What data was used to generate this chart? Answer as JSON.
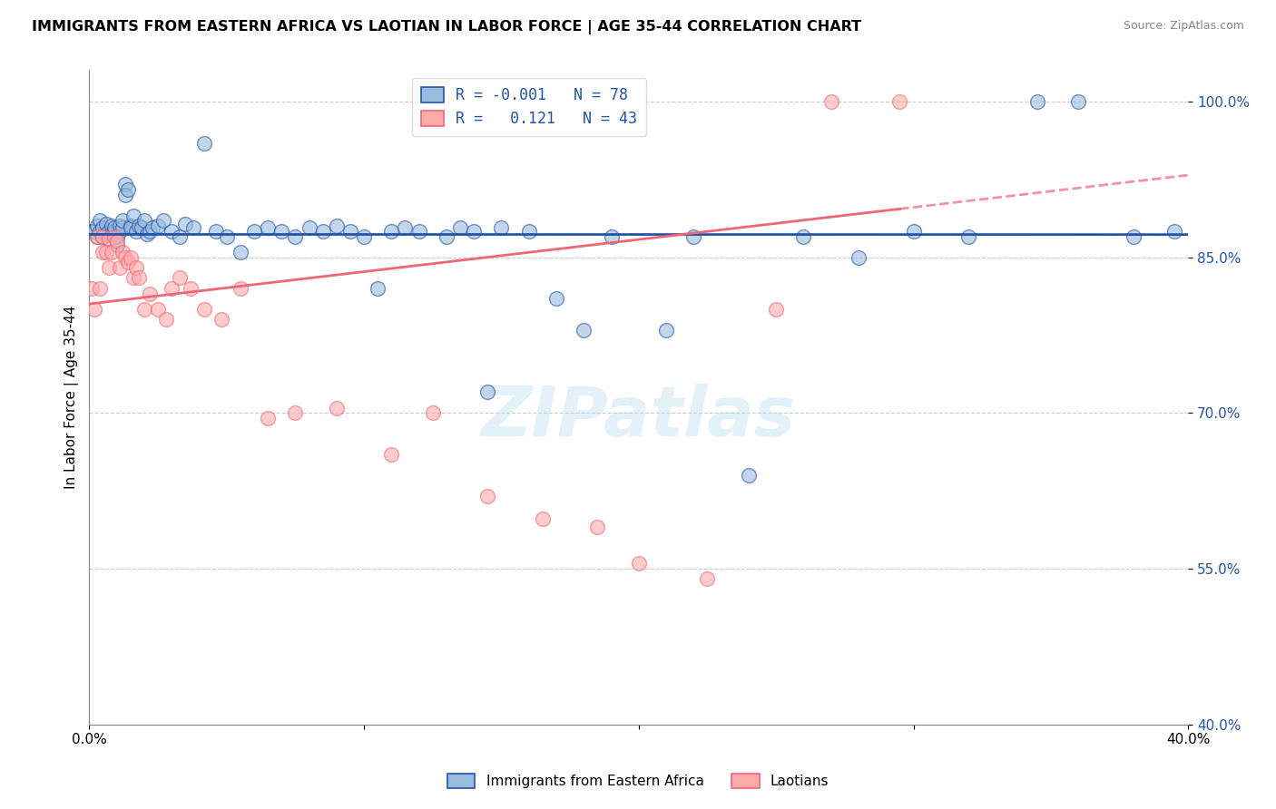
{
  "title": "IMMIGRANTS FROM EASTERN AFRICA VS LAOTIAN IN LABOR FORCE | AGE 35-44 CORRELATION CHART",
  "source": "Source: ZipAtlas.com",
  "ylabel": "In Labor Force | Age 35-44",
  "xlim": [
    0.0,
    0.4
  ],
  "ylim": [
    0.4,
    1.03
  ],
  "ytick_positions": [
    0.4,
    0.55,
    0.7,
    0.85,
    1.0
  ],
  "ytick_labels": [
    "40.0%",
    "55.0%",
    "70.0%",
    "85.0%",
    "100.0%"
  ],
  "xtick_positions": [
    0.0,
    0.1,
    0.2,
    0.3,
    0.4
  ],
  "xtick_labels": [
    "0.0%",
    "",
    "",
    "",
    "40.0%"
  ],
  "legend_r_blue": "-0.001",
  "legend_n_blue": "78",
  "legend_r_pink": "0.121",
  "legend_n_pink": "43",
  "blue_color": "#99BBDD",
  "pink_color": "#FFAAAA",
  "trendline_blue_color": "#2255AA",
  "trendline_pink_color": "#EE6677",
  "watermark": "ZIPatlas",
  "blue_x": [
    0.001,
    0.002,
    0.003,
    0.003,
    0.004,
    0.004,
    0.005,
    0.005,
    0.006,
    0.006,
    0.007,
    0.007,
    0.008,
    0.008,
    0.009,
    0.009,
    0.01,
    0.01,
    0.011,
    0.011,
    0.012,
    0.012,
    0.013,
    0.013,
    0.014,
    0.015,
    0.015,
    0.016,
    0.017,
    0.018,
    0.019,
    0.02,
    0.021,
    0.022,
    0.023,
    0.025,
    0.027,
    0.03,
    0.033,
    0.035,
    0.038,
    0.042,
    0.046,
    0.05,
    0.055,
    0.06,
    0.065,
    0.07,
    0.075,
    0.08,
    0.085,
    0.09,
    0.095,
    0.1,
    0.105,
    0.11,
    0.115,
    0.12,
    0.13,
    0.135,
    0.14,
    0.145,
    0.15,
    0.16,
    0.17,
    0.18,
    0.19,
    0.21,
    0.22,
    0.24,
    0.26,
    0.28,
    0.3,
    0.32,
    0.345,
    0.36,
    0.38,
    0.395
  ],
  "blue_y": [
    0.875,
    0.875,
    0.88,
    0.87,
    0.885,
    0.875,
    0.87,
    0.878,
    0.872,
    0.882,
    0.875,
    0.868,
    0.88,
    0.872,
    0.875,
    0.878,
    0.87,
    0.862,
    0.875,
    0.88,
    0.878,
    0.885,
    0.92,
    0.91,
    0.915,
    0.88,
    0.878,
    0.89,
    0.875,
    0.88,
    0.878,
    0.885,
    0.872,
    0.875,
    0.878,
    0.88,
    0.885,
    0.875,
    0.87,
    0.882,
    0.878,
    0.96,
    0.875,
    0.87,
    0.855,
    0.875,
    0.878,
    0.875,
    0.87,
    0.878,
    0.875,
    0.88,
    0.875,
    0.87,
    0.82,
    0.875,
    0.878,
    0.875,
    0.87,
    0.878,
    0.875,
    0.72,
    0.878,
    0.875,
    0.81,
    0.78,
    0.87,
    0.78,
    0.87,
    0.64,
    0.87,
    0.85,
    0.875,
    0.87,
    1.0,
    1.0,
    0.87,
    0.875
  ],
  "pink_x": [
    0.001,
    0.002,
    0.003,
    0.004,
    0.005,
    0.005,
    0.006,
    0.007,
    0.007,
    0.008,
    0.009,
    0.01,
    0.011,
    0.012,
    0.013,
    0.014,
    0.015,
    0.016,
    0.017,
    0.018,
    0.02,
    0.022,
    0.025,
    0.028,
    0.03,
    0.033,
    0.037,
    0.042,
    0.048,
    0.055,
    0.065,
    0.075,
    0.09,
    0.11,
    0.125,
    0.145,
    0.165,
    0.185,
    0.2,
    0.225,
    0.25,
    0.27,
    0.295
  ],
  "pink_y": [
    0.82,
    0.8,
    0.87,
    0.82,
    0.855,
    0.87,
    0.855,
    0.868,
    0.84,
    0.855,
    0.87,
    0.865,
    0.84,
    0.855,
    0.85,
    0.845,
    0.85,
    0.83,
    0.84,
    0.83,
    0.8,
    0.815,
    0.8,
    0.79,
    0.82,
    0.83,
    0.82,
    0.8,
    0.79,
    0.82,
    0.695,
    0.7,
    0.705,
    0.66,
    0.7,
    0.62,
    0.598,
    0.59,
    0.555,
    0.54,
    0.8,
    1.0,
    1.0
  ]
}
